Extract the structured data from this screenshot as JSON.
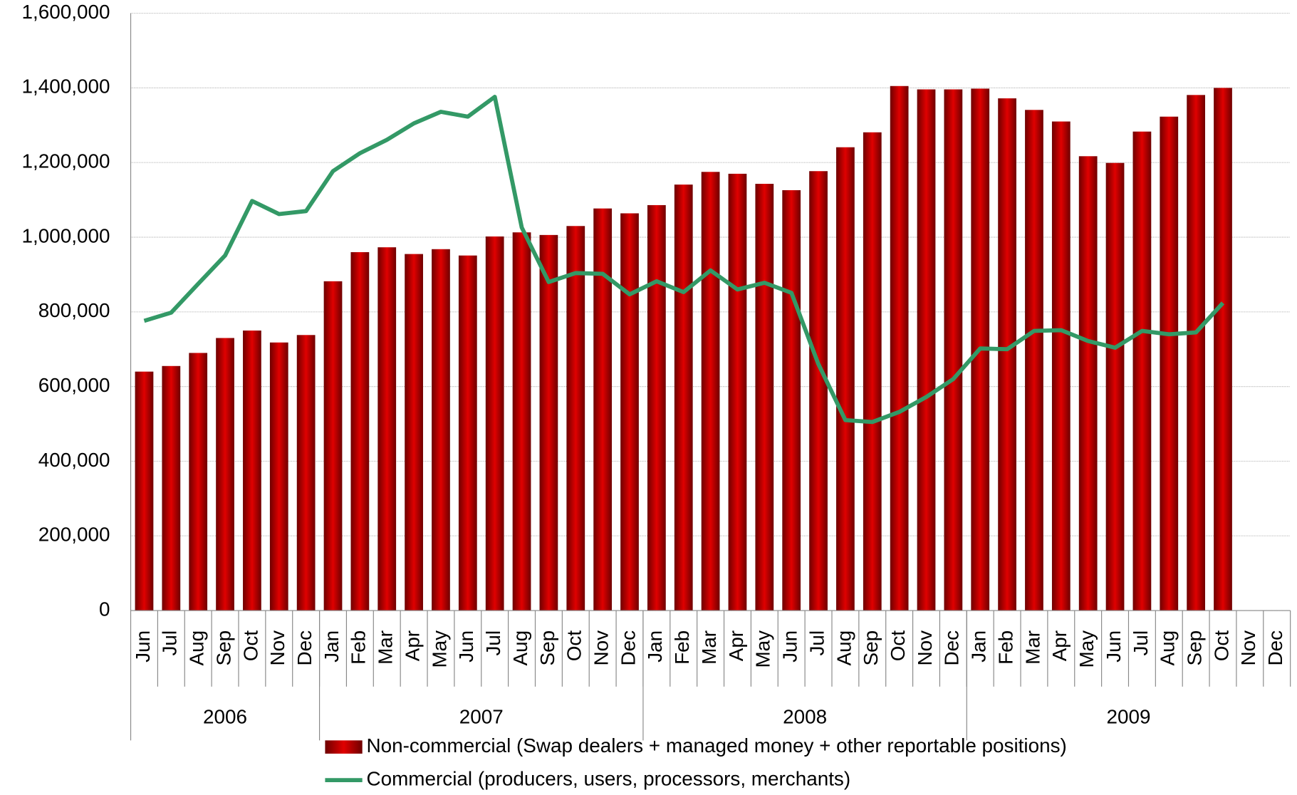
{
  "chart_data": {
    "type": "bar_line",
    "categories": [
      "Jun",
      "Jul",
      "Aug",
      "Sep",
      "Oct",
      "Nov",
      "Dec",
      "Jan",
      "Feb",
      "Mar",
      "Apr",
      "May",
      "Jun",
      "Jul",
      "Aug",
      "Sep",
      "Oct",
      "Nov",
      "Dec",
      "Jan",
      "Feb",
      "Mar",
      "Apr",
      "May",
      "Jun",
      "Jul",
      "Aug",
      "Sep",
      "Oct",
      "Nov",
      "Dec",
      "Jan",
      "Feb",
      "Mar",
      "Apr",
      "May",
      "Jun",
      "Jul",
      "Aug",
      "Sep",
      "Oct",
      "Nov",
      "Dec"
    ],
    "year_groups": [
      {
        "label": "2006",
        "span": 7
      },
      {
        "label": "2007",
        "span": 12
      },
      {
        "label": "2008",
        "span": 12
      },
      {
        "label": "2009",
        "span": 12
      }
    ],
    "series": [
      {
        "name": "Non-commercial (Swap dealers + managed money + other reportable positions)",
        "type": "bar",
        "color": "#e00000",
        "values": [
          640000,
          655000,
          690000,
          730000,
          750000,
          718000,
          738000,
          882000,
          960000,
          973000,
          955000,
          968000,
          951000,
          1002000,
          1013000,
          1006000,
          1030000,
          1077000,
          1064000,
          1086000,
          1141000,
          1175000,
          1170000,
          1143000,
          1126000,
          1177000,
          1241000,
          1281000,
          1405000,
          1396000,
          1396000,
          1398000,
          1372000,
          1341000,
          1310000,
          1217000,
          1199000,
          1283000,
          1323000,
          1381000,
          1400000,
          null,
          null
        ]
      },
      {
        "name": "Commercial (producers, users, processors, merchants)",
        "type": "line",
        "color": "#339966",
        "values": [
          776000,
          798000,
          875000,
          951000,
          1097000,
          1062000,
          1070000,
          1177000,
          1225000,
          1261000,
          1305000,
          1336000,
          1323000,
          1376000,
          1026000,
          880000,
          904000,
          902000,
          847000,
          882000,
          853000,
          911000,
          860000,
          878000,
          851000,
          660000,
          510000,
          505000,
          532000,
          572000,
          620000,
          702000,
          700000,
          749000,
          751000,
          722000,
          704000,
          749000,
          740000,
          745000,
          824000,
          null,
          null
        ]
      }
    ],
    "ylim": [
      0,
      1600000
    ],
    "yticks": [
      0,
      {
        "value": 200000,
        "label": "200,000"
      },
      {
        "value": 400000,
        "label": "400,000"
      },
      {
        "value": 600000,
        "label": "600,000"
      },
      {
        "value": 800000,
        "label": "800,000"
      },
      {
        "value": 1000000,
        "label": "1,000,000"
      },
      {
        "value": 1200000,
        "label": "1,200,000"
      },
      {
        "value": 1400000,
        "label": "1,400,000"
      },
      {
        "value": 1600000,
        "label": "1,600,000"
      }
    ],
    "grid": true,
    "legend": "bottom"
  }
}
